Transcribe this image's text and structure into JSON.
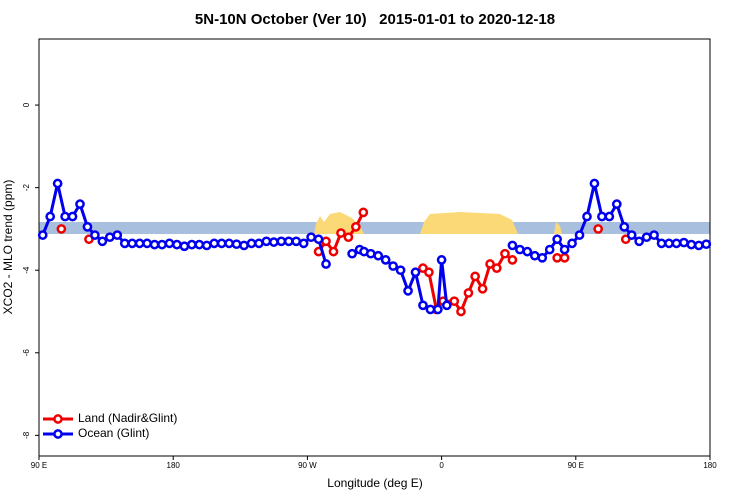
{
  "chart_data": {
    "type": "line",
    "title": "5N-10N October (Ver 10)   2015-01-01 to 2020-12-18",
    "x_label": "Longitude (deg E)",
    "y_label": "XCO2 - MLO trend (ppm)",
    "xlim": [
      90,
      540
    ],
    "xticks": [
      {
        "value": 90,
        "label": "90 E"
      },
      180,
      {
        "value": 270,
        "label": "90 W"
      },
      {
        "value": 360,
        "label": "0"
      },
      {
        "value": 450,
        "label": "90 E"
      },
      {
        "value": 540,
        "label": "180"
      }
    ],
    "ylim": [
      -8.5,
      1.6
    ],
    "yticks": [
      0,
      -2,
      -4,
      -6,
      -8
    ],
    "legend": "bottom-left",
    "series": [
      {
        "name": "Land (Nadir&Glint)",
        "color": "#ee0000",
        "x": [
          105,
          114,
          123.5,
          200,
          277.5,
          282.5,
          287.5,
          292.5,
          297.5,
          302.5,
          307.5,
          330,
          347.5,
          351.5,
          356.5,
          361,
          368.5,
          373,
          378,
          382.5,
          387.5,
          392.5,
          397,
          402.5,
          407.5,
          420,
          437.5,
          442.5,
          450,
          465,
          475,
          483.5
        ],
        "values": [
          -3.0,
          null,
          -3.25,
          null,
          -3.55,
          -3.3,
          -3.55,
          -3.1,
          -3.2,
          -2.95,
          -2.6,
          null,
          -3.95,
          -4.05,
          -4.95,
          -4.75,
          -4.75,
          -5.0,
          -4.55,
          -4.15,
          -4.45,
          -3.85,
          -3.95,
          -3.6,
          -3.75,
          null,
          -3.7,
          -3.7,
          null,
          -3.0,
          null,
          -3.25
        ]
      },
      {
        "name": "Ocean (Glint)",
        "color": "#0000ee",
        "x": [
          92.5,
          97.5,
          102.5,
          107.5,
          112.5,
          117.5,
          122.5,
          127.5,
          132.5,
          137.5,
          142.5,
          147.5,
          152.5,
          157.5,
          162.5,
          167.5,
          172.5,
          177.5,
          182.5,
          187.5,
          192.5,
          197.5,
          202.5,
          207.5,
          212.5,
          217.5,
          222.5,
          227.5,
          232.5,
          237.5,
          242.5,
          247.5,
          252.5,
          257.5,
          262.5,
          267.5,
          272.5,
          277.5,
          282.5,
          290,
          300,
          305,
          308,
          312.5,
          317.5,
          322.5,
          327.5,
          332.5,
          337.5,
          342.5,
          347.5,
          352.5,
          357.5,
          360,
          363.5,
          385,
          407.5,
          412.5,
          417.5,
          422.5,
          427.5,
          432.5,
          437.5,
          442.5,
          447.5,
          452.5,
          457.5,
          462.5,
          467.5,
          472.5,
          477.5,
          482.5,
          487.5,
          492.5,
          497.5,
          502.5,
          507.5,
          512.5,
          517.5,
          522.5,
          527.5,
          532.5,
          537.5
        ],
        "values": [
          -3.15,
          -2.7,
          -1.9,
          -2.7,
          -2.7,
          -2.4,
          -2.95,
          -3.15,
          -3.3,
          -3.2,
          -3.15,
          -3.35,
          -3.35,
          -3.35,
          -3.35,
          -3.38,
          -3.38,
          -3.35,
          -3.38,
          -3.42,
          -3.38,
          -3.38,
          -3.4,
          -3.35,
          -3.35,
          -3.35,
          -3.37,
          -3.4,
          -3.35,
          -3.35,
          -3.3,
          -3.32,
          -3.3,
          -3.3,
          -3.3,
          -3.35,
          -3.2,
          -3.25,
          -3.85,
          null,
          -3.6,
          -3.5,
          -3.55,
          -3.6,
          -3.65,
          -3.75,
          -3.9,
          -4.0,
          -4.5,
          -4.05,
          -4.85,
          -4.95,
          -4.95,
          -3.75,
          -4.85,
          null,
          -3.4,
          -3.5,
          -3.55,
          -3.65,
          -3.7,
          -3.5,
          -3.25,
          -3.5,
          -3.35,
          -3.15,
          -2.7,
          -1.9,
          -2.7,
          -2.7,
          -2.4,
          -2.95,
          -3.15,
          -3.3,
          -3.2,
          -3.15,
          -3.35,
          -3.35,
          -3.35,
          -3.33,
          -3.38,
          -3.4,
          -3.37
        ]
      }
    ]
  }
}
